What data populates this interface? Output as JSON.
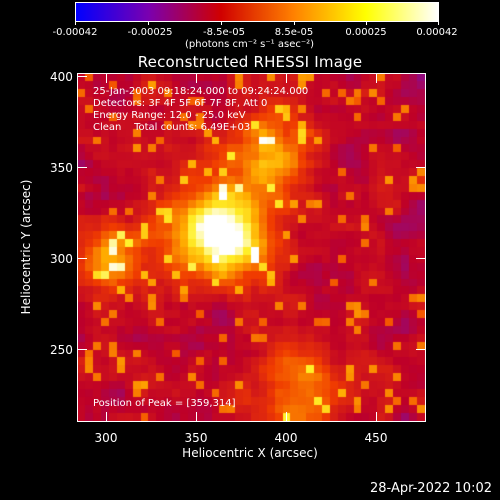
{
  "colorbar": {
    "ticks": [
      "-0.00042",
      "-0.00025",
      "-8.5e-05",
      "8.5e-05",
      "0.00025",
      "0.00042"
    ],
    "units": "(photons cm⁻² s⁻¹ asec⁻²)",
    "colors": [
      "#0000ff",
      "#7a00b0",
      "#d00000",
      "#ff8000",
      "#ffff00",
      "#ffffff"
    ]
  },
  "plot": {
    "title": "Reconstructed RHESSI Image",
    "xlabel": "Heliocentric X (arcsec)",
    "ylabel": "Heliocentric Y (arcsec)",
    "xticks": [
      "300",
      "350",
      "400",
      "450"
    ],
    "yticks": [
      "400",
      "350",
      "300",
      "250"
    ],
    "info_lines": [
      "25-Jan-2003 09:18:24.000 to 09:24:24.000",
      "Detectors: 3F 4F 5F 6F 7F 8F, Att 0",
      "Energy Range: 12.0 - 25.0 keV",
      "Clean    Total counts: 6.49E+03"
    ],
    "peak_text": "Position of Peak = [359,314]"
  },
  "footer": {
    "date": "28-Apr-2022 10:02"
  },
  "chart_data": {
    "type": "heatmap",
    "title": "Reconstructed RHESSI Image",
    "xlabel": "Heliocentric X (arcsec)",
    "ylabel": "Heliocentric Y (arcsec)",
    "xlim": [
      281,
      475
    ],
    "ylim": [
      206,
      401
    ],
    "peak": [
      359,
      314
    ],
    "colorbar_range": [
      -0.00042,
      0.00042
    ],
    "colormap": "blue-purple-red-yellow-white"
  }
}
